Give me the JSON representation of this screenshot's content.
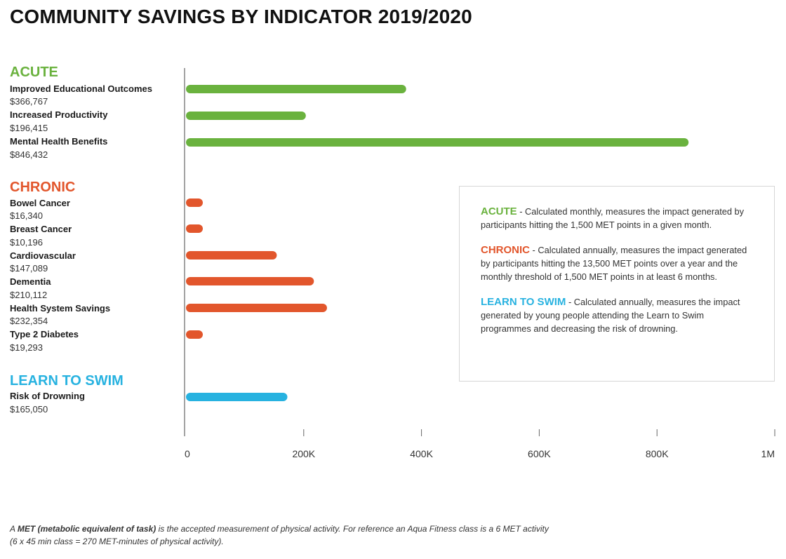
{
  "colors": {
    "acute": "#6ab23e",
    "chronic": "#e2562c",
    "swim": "#27b2e0",
    "axis": "#666666"
  },
  "chart_data": {
    "type": "bar",
    "orientation": "horizontal",
    "title": "COMMUNITY SAVINGS BY INDICATOR 2019/2020",
    "xlim": [
      0,
      1000000
    ],
    "xticks": [
      0,
      200000,
      400000,
      600000,
      800000,
      1000000
    ],
    "xtick_labels": [
      "0",
      "200K",
      "400K",
      "600K",
      "800K",
      "1M"
    ],
    "groups": [
      {
        "name": "ACUTE",
        "color_key": "acute",
        "items": [
          {
            "label": "Improved Educational Outcomes",
            "value": 366767,
            "value_label": "$366,767"
          },
          {
            "label": "Increased Productivity",
            "value": 196415,
            "value_label": "$196,415"
          },
          {
            "label": "Mental Health Benefits",
            "value": 846432,
            "value_label": "$846,432"
          }
        ]
      },
      {
        "name": "CHRONIC",
        "color_key": "chronic",
        "items": [
          {
            "label": "Bowel Cancer",
            "value": 16340,
            "value_label": "$16,340"
          },
          {
            "label": "Breast Cancer",
            "value": 10196,
            "value_label": "$10,196"
          },
          {
            "label": "Cardiovascular",
            "value": 147089,
            "value_label": "$147,089"
          },
          {
            "label": "Dementia",
            "value": 210112,
            "value_label": "$210,112"
          },
          {
            "label": "Health System Savings",
            "value": 232354,
            "value_label": "$232,354"
          },
          {
            "label": "Type 2 Diabetes",
            "value": 19293,
            "value_label": "$19,293"
          }
        ]
      },
      {
        "name": "LEARN TO SWIM",
        "color_key": "swim",
        "items": [
          {
            "label": "Risk of Drowning",
            "value": 165050,
            "value_label": "$165,050"
          }
        ]
      }
    ]
  },
  "infobox": {
    "acute": {
      "key": "ACUTE",
      "text": " - Calculated monthly, measures the impact generated by participants hitting the 1,500 MET points in a given month."
    },
    "chronic": {
      "key": "CHRONIC",
      "text": " - Calculated annually, measures the impact generated by participants hitting the 13,500 MET points over a year and the monthly threshold of 1,500 MET points in at least 6 months."
    },
    "swim": {
      "key": "LEARN TO SWIM",
      "text": " - Calculated annually, measures the impact generated by young people attending the Learn to Swim programmes and decreasing the risk of drowning."
    }
  },
  "footnote": {
    "prefix": "A ",
    "bold": "MET (metabolic equivalent of task)",
    "line1": " is the accepted measurement of physical activity. For reference an Aqua Fitness class is a 6 MET activity",
    "line2": "(6 x 45 min class = 270 MET-minutes of physical activity)."
  }
}
